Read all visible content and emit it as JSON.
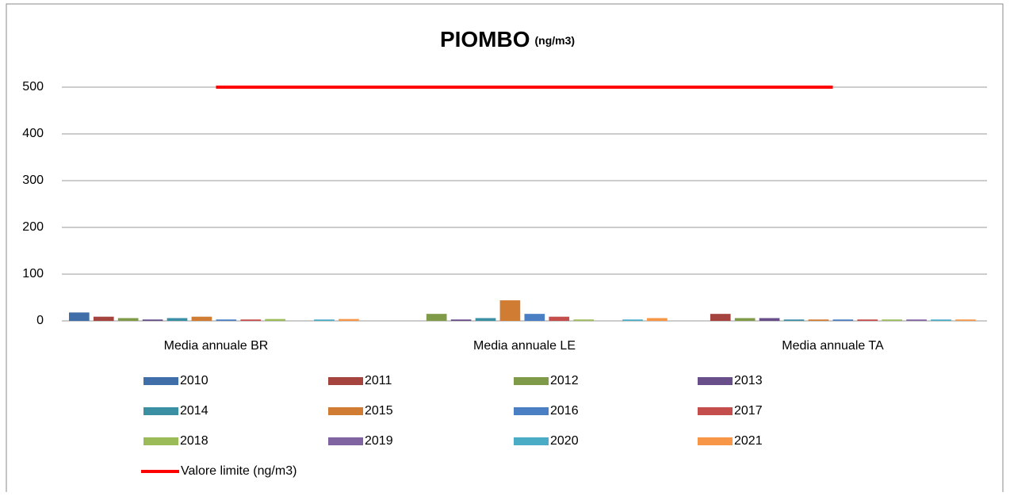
{
  "chart_data": {
    "type": "bar",
    "title": "PIOMBO",
    "title_unit": "(ng/m3)",
    "categories": [
      "Media annuale  BR",
      "Media annuale  LE",
      "Media annuale  TA"
    ],
    "ylim": [
      0,
      500
    ],
    "yticks": [
      0,
      100,
      200,
      300,
      400,
      500
    ],
    "grid": true,
    "series": [
      {
        "name": "2010",
        "color": "#3f6ea8",
        "values": [
          18,
          null,
          null
        ]
      },
      {
        "name": "2011",
        "color": "#a5433f",
        "values": [
          9,
          null,
          15
        ]
      },
      {
        "name": "2012",
        "color": "#7f9a48",
        "values": [
          6,
          15,
          6
        ]
      },
      {
        "name": "2013",
        "color": "#684f8a",
        "values": [
          3,
          3,
          6
        ]
      },
      {
        "name": "2014",
        "color": "#3b8fa3",
        "values": [
          6,
          6,
          3
        ]
      },
      {
        "name": "2015",
        "color": "#d07c32",
        "values": [
          9,
          44,
          3
        ]
      },
      {
        "name": "2016",
        "color": "#4a7fc4",
        "values": [
          3,
          15,
          3
        ]
      },
      {
        "name": "2017",
        "color": "#c44e4b",
        "values": [
          3,
          9,
          3
        ]
      },
      {
        "name": "2018",
        "color": "#9bbb59",
        "values": [
          4,
          3,
          3
        ]
      },
      {
        "name": "2019",
        "color": "#8064a2",
        "values": [
          null,
          null,
          3
        ]
      },
      {
        "name": "2020",
        "color": "#4bacc6",
        "values": [
          3,
          3,
          3
        ]
      },
      {
        "name": "2021",
        "color": "#f79646",
        "values": [
          4,
          6,
          3
        ]
      },
      {
        "name": "Valore limite (ng/m3)",
        "type": "line",
        "color": "#ff0000",
        "values": [
          500,
          500,
          500
        ]
      }
    ]
  }
}
